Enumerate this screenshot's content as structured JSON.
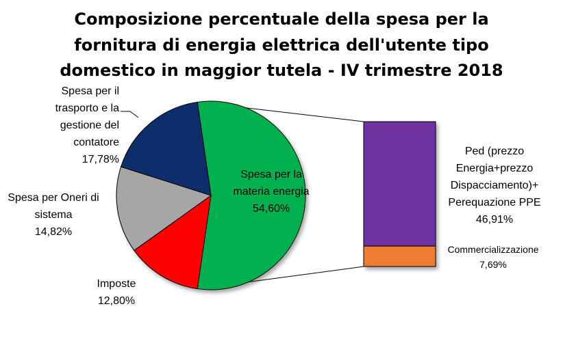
{
  "chart_data": {
    "type": "pie",
    "title_lines": [
      "Composizione percentuale della spesa per la",
      "fornitura di energia elettrica dell'utente tipo",
      "domestico in maggior tutela - IV trimestre 2018"
    ],
    "slices": [
      {
        "label_lines": [
          "Spesa per la",
          "materia energia"
        ],
        "value_text": "54,60%",
        "value": 54.6,
        "color": "#00B050"
      },
      {
        "label_lines": [
          "Imposte"
        ],
        "value_text": "12,80%",
        "value": 12.8,
        "color": "#FF0000"
      },
      {
        "label_lines": [
          "Spesa per Oneri di",
          "sistema"
        ],
        "value_text": "14,82%",
        "value": 14.82,
        "color": "#A6A6A6"
      },
      {
        "label_lines": [
          "Spesa per il",
          "trasporto e la",
          "gestione del",
          "contatore"
        ],
        "value_text": "17,78%",
        "value": 17.78,
        "color": "#0F2F6B"
      }
    ],
    "breakdown": {
      "of_slice": "Spesa per la materia energia",
      "segments": [
        {
          "label_lines": [
            "Ped (prezzo",
            "Energia+prezzo",
            "Dispacciamento)+",
            "Perequazione PPE"
          ],
          "value_text": "46,91%",
          "value": 46.91,
          "color": "#7030A0"
        },
        {
          "label_lines": [
            "Commercializzazione"
          ],
          "value_text": "7,69%",
          "value": 7.69,
          "color": "#ED7D31"
        }
      ]
    }
  }
}
